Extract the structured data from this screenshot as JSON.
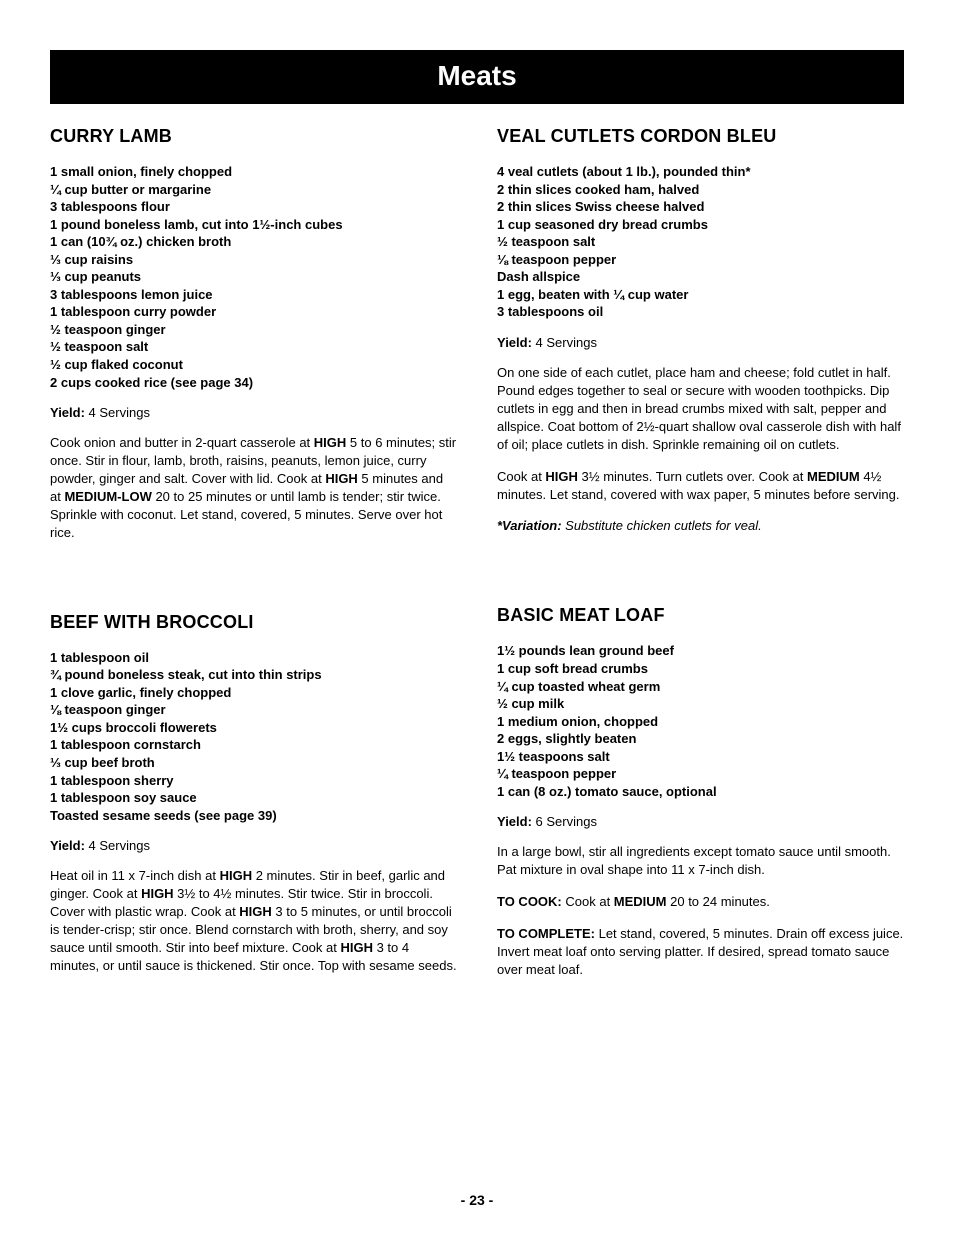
{
  "banner": "Meats",
  "page_number": "- 23 -",
  "style": {
    "banner_bg": "#000000",
    "banner_fg": "#ffffff",
    "body_bg": "#ffffff",
    "body_fg": "#000000",
    "title_fontsize": 18,
    "body_fontsize": 13,
    "banner_fontsize": 28
  },
  "recipes": {
    "curry_lamb": {
      "title": "CURRY LAMB",
      "ingredients": [
        "1 small onion, finely chopped",
        "¼ cup butter or margarine",
        "3 tablespoons flour",
        "1 pound boneless lamb, cut into 1½-inch cubes",
        "1 can (10¾ oz.) chicken broth",
        "⅓ cup raisins",
        "⅓ cup peanuts",
        "3 tablespoons lemon juice",
        "1 tablespoon curry powder",
        "½ teaspoon ginger",
        "½ teaspoon salt",
        "½ cup flaked coconut",
        "2 cups cooked rice (see page 34)"
      ],
      "yield": "4 Servings",
      "para1": "Cook onion and butter in 2-quart casserole at <b>HIGH</b> 5 to 6 minutes; stir once. Stir in flour, lamb, broth, raisins, peanuts, lemon juice, curry powder, ginger and salt. Cover with lid. Cook at <b>HIGH</b> 5 minutes and at <b>MEDIUM-LOW</b> 20 to 25 minutes or until lamb is tender; stir twice. Sprinkle with coconut. Let stand, covered, 5 minutes. Serve over hot rice."
    },
    "veal": {
      "title": "VEAL CUTLETS CORDON BLEU",
      "ingredients": [
        "4 veal cutlets (about 1 lb.), pounded thin*",
        "2 thin slices cooked ham, halved",
        "2 thin slices Swiss cheese halved",
        "1 cup seasoned dry bread crumbs",
        "½ teaspoon salt",
        "⅛ teaspoon pepper",
        "Dash allspice",
        "1 egg, beaten with ¼ cup water",
        "3 tablespoons oil"
      ],
      "yield": "4 Servings",
      "para1": "On one side of each cutlet, place ham and cheese; fold cutlet in half. Pound edges together to seal or secure with wooden toothpicks. Dip cutlets in egg and then in bread crumbs mixed with salt, pepper and allspice. Coat bottom of 2½-quart shallow oval casserole dish with half of oil; place cutlets in dish. Sprinkle remaining oil on cutlets.",
      "para2": "Cook at <b>HIGH</b> 3½ minutes. Turn cutlets over. Cook at <b>MEDIUM</b> 4½ minutes. Let stand, covered with wax paper, 5 minutes before serving.",
      "variation_label": "*Variation:",
      "variation_text": "Substitute chicken cutlets for veal."
    },
    "beef_broccoli": {
      "title": "BEEF WITH BROCCOLI",
      "ingredients": [
        "1 tablespoon oil",
        "¾ pound boneless steak, cut into thin strips",
        "1 clove garlic, finely chopped",
        "⅛ teaspoon ginger",
        "1½ cups broccoli flowerets",
        "1 tablespoon cornstarch",
        "⅓ cup beef broth",
        "1 tablespoon sherry",
        "1 tablespoon soy sauce",
        "Toasted sesame seeds (see page 39)"
      ],
      "yield": "4 Servings",
      "para1": "Heat oil in 11 x 7-inch dish at <b>HIGH</b> 2 minutes. Stir in beef, garlic and ginger. Cook at <b>HIGH</b> 3½ to 4½ minutes. Stir twice. Stir in broccoli. Cover with plastic wrap. Cook at <b>HIGH</b> 3 to 5 minutes, or until broccoli is tender-crisp; stir once. Blend cornstarch with broth, sherry, and soy sauce until smooth. Stir into beef mixture. Cook at <b>HIGH</b> 3 to 4 minutes, or until sauce is thickened. Stir once. Top with sesame seeds."
    },
    "meat_loaf": {
      "title": "BASIC MEAT LOAF",
      "ingredients": [
        "1½ pounds lean ground beef",
        "1 cup soft bread crumbs",
        "¼ cup toasted wheat germ",
        "½ cup milk",
        "1 medium onion, chopped",
        "2 eggs, slightly beaten",
        "1½ teaspoons salt",
        "¼ teaspoon pepper",
        "1 can (8 oz.) tomato sauce, optional"
      ],
      "yield": "6 Servings",
      "para1": "In a large bowl, stir all ingredients except tomato sauce until smooth. Pat mixture in oval shape into 11 x 7-inch dish.",
      "para2": "<b>TO COOK:</b> Cook at <b>MEDIUM</b> 20 to 24 minutes.",
      "para3": "<b>TO COMPLETE:</b> Let stand, covered, 5 minutes. Drain off excess juice. Invert meat loaf onto serving platter. If desired, spread tomato sauce over meat loaf."
    }
  }
}
